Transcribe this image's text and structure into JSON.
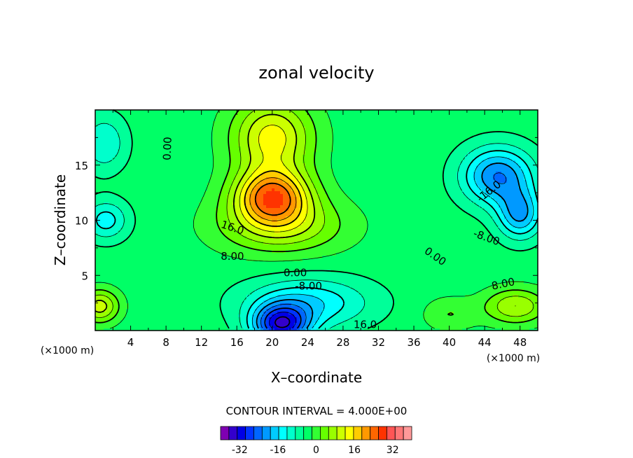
{
  "chart_data": {
    "type": "heatmap",
    "title": "zonal velocity",
    "xlabel": "X–coordinate",
    "ylabel": "Z–coordinate",
    "x_unit_left": "(×1000 m)",
    "x_unit_right": "(×1000 m)",
    "xlim": [
      0,
      50
    ],
    "ylim": [
      0,
      20
    ],
    "x_ticks": [
      4,
      8,
      12,
      16,
      20,
      24,
      28,
      32,
      36,
      40,
      44,
      48
    ],
    "x_tick_labels": [
      "4",
      "8",
      "12",
      "16",
      "20",
      "24",
      "28",
      "32",
      "36",
      "40",
      "44",
      "48"
    ],
    "y_ticks": [
      5,
      10,
      15
    ],
    "y_tick_labels": [
      "5",
      "10",
      "15"
    ],
    "contour_interval_text": "CONTOUR INTERVAL = 4.000E+00",
    "contour_interval": 4,
    "contour_labels": [
      {
        "text": "0.00",
        "x": 8.2,
        "y": 16.5,
        "rotate": -88
      },
      {
        "text": "16.0",
        "x": 15.5,
        "y": 9.3,
        "rotate": 18
      },
      {
        "text": "8.00",
        "x": 15.5,
        "y": 6.7,
        "rotate": 0
      },
      {
        "text": "0.00",
        "x": 22.6,
        "y": 5.2,
        "rotate": 0
      },
      {
        "text": "-8.00",
        "x": 24.1,
        "y": 4.0,
        "rotate": 0
      },
      {
        "text": "16.0",
        "x": 30.5,
        "y": 0.5,
        "rotate": 0
      },
      {
        "text": "0.00",
        "x": 38.4,
        "y": 6.7,
        "rotate": 35
      },
      {
        "text": "-8.00",
        "x": 44.2,
        "y": 8.4,
        "rotate": 20
      },
      {
        "text": "8.00",
        "x": 46.1,
        "y": 4.2,
        "rotate": -12
      },
      {
        "text": "-16.0",
        "x": 44.5,
        "y": 12.6,
        "rotate": -38
      }
    ],
    "colorbar": {
      "min": -40,
      "max": 40,
      "tick_values": [
        -32,
        -16,
        0,
        16,
        32
      ],
      "tick_labels": [
        "-32",
        "-16",
        "0",
        "16",
        "32"
      ],
      "colors": [
        "#7f00b2",
        "#3300cc",
        "#0000e6",
        "#0033ff",
        "#0066ff",
        "#0099ff",
        "#00ccff",
        "#00ffff",
        "#00ffcc",
        "#00ff99",
        "#00ff66",
        "#33ff33",
        "#66ff00",
        "#99ff00",
        "#ccff00",
        "#ffff00",
        "#ffcc00",
        "#ff9900",
        "#ff6600",
        "#ff3300",
        "#ff5555",
        "#ff7777",
        "#ff9999"
      ]
    },
    "features": [
      {
        "kind": "max",
        "x": 20,
        "y": 12.2,
        "value": 30,
        "sx": 4.2,
        "sy": 2.4
      },
      {
        "kind": "max",
        "x": 20,
        "y": 17.5,
        "value": 20,
        "sx": 4.5,
        "sy": 3.5
      },
      {
        "kind": "max",
        "x": 21,
        "y": 9.5,
        "value": 14,
        "sx": 7,
        "sy": 2.5
      },
      {
        "kind": "min",
        "x": 21,
        "y": 0.5,
        "value": -30,
        "sx": 3.2,
        "sy": 1.8
      },
      {
        "kind": "min",
        "x": 24,
        "y": 2.5,
        "value": -14,
        "sx": 7,
        "sy": 2.3
      },
      {
        "kind": "min",
        "x": 45.5,
        "y": 14,
        "value": -22,
        "sx": 4,
        "sy": 2.6
      },
      {
        "kind": "min",
        "x": 48,
        "y": 10.5,
        "value": -18,
        "sx": 2.5,
        "sy": 2.2
      },
      {
        "kind": "min",
        "x": 1,
        "y": 17,
        "value": -10,
        "sx": 2.5,
        "sy": 2.5
      },
      {
        "kind": "min",
        "x": 1.2,
        "y": 10,
        "value": -12,
        "sx": 2.5,
        "sy": 1.8
      },
      {
        "kind": "max",
        "x": 0.5,
        "y": 2.2,
        "value": 16,
        "sx": 2.2,
        "sy": 1.5
      },
      {
        "kind": "max",
        "x": 47.5,
        "y": 2.2,
        "value": 14,
        "sx": 3.5,
        "sy": 1.6
      },
      {
        "kind": "max",
        "x": 40,
        "y": 1.5,
        "value": 6,
        "sx": 3,
        "sy": 1.5
      }
    ],
    "grid": false
  }
}
